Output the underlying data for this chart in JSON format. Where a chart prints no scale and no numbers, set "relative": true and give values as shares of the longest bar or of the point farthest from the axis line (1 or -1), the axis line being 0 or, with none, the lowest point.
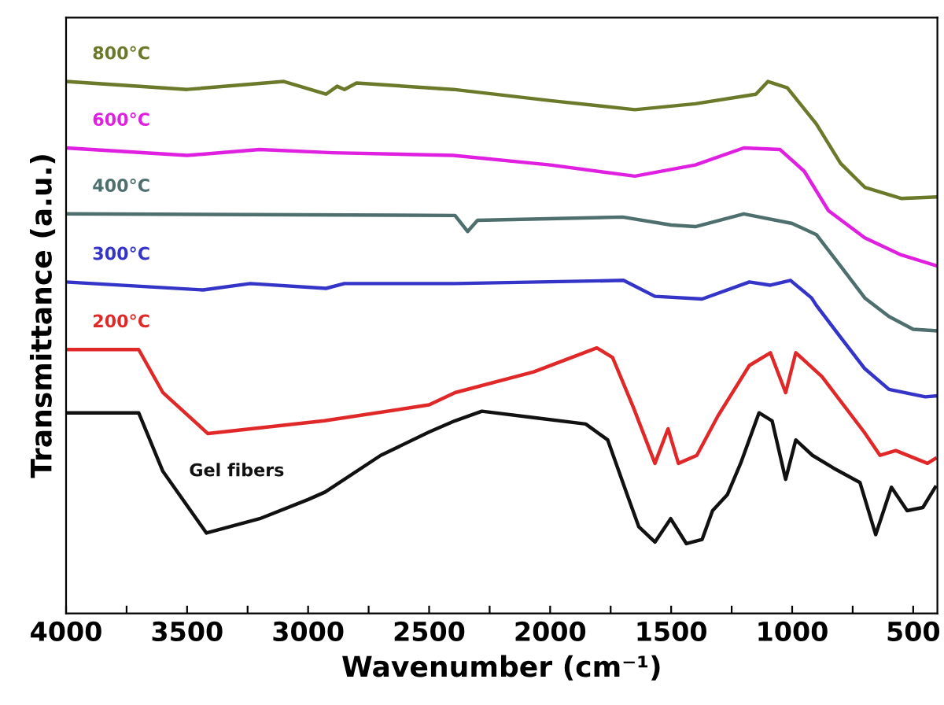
{
  "chart_data": {
    "type": "line",
    "xlabel": "Wavenumber (cm⁻¹)",
    "ylabel": "Transmittance (a.u.)",
    "relative": true,
    "xlim": [
      4000,
      400
    ],
    "xticks": [
      4000,
      {
        "value": 3750,
        "label": null
      },
      3500,
      {
        "value": 3250,
        "label": null
      },
      3000,
      {
        "value": 2750,
        "label": null
      },
      2500,
      {
        "value": 2250,
        "label": null
      },
      2000,
      {
        "value": 1750,
        "label": null
      },
      1500,
      {
        "value": 1250,
        "label": null
      },
      1000,
      {
        "value": 750,
        "label": null
      },
      500
    ],
    "grid": false,
    "legend": false,
    "marker": "none",
    "line_style": "solid",
    "tick_labels": "x",
    "series": [
      {
        "name": "Gel fibers",
        "color": "#111111",
        "x": [
          4000,
          3700,
          3600,
          3420,
          3200,
          3000,
          2930,
          2700,
          2500,
          2393,
          2282,
          2068,
          1853,
          1762,
          1677,
          1634,
          1567,
          1502,
          1437,
          1372,
          1329,
          1268,
          1213,
          1137,
          1083,
          1027,
          985,
          916,
          829,
          720,
          655,
          590,
          525,
          460,
          409
        ],
        "values": [
          0.377,
          0.377,
          0.267,
          0.151,
          0.178,
          0.214,
          0.228,
          0.297,
          0.341,
          0.362,
          0.38,
          0.368,
          0.356,
          0.326,
          0.217,
          0.163,
          0.134,
          0.178,
          0.131,
          0.139,
          0.193,
          0.223,
          0.282,
          0.377,
          0.362,
          0.252,
          0.326,
          0.297,
          0.273,
          0.246,
          0.148,
          0.237,
          0.193,
          0.199,
          0.237
        ]
      },
      {
        "name": "200°C",
        "color": "#e02828",
        "x": [
          4000,
          3700,
          3600,
          3414,
          2933,
          2500,
          2393,
          2068,
          1807,
          1742,
          1655,
          1567,
          1513,
          1470,
          1394,
          1307,
          1177,
          1090,
          1027,
          985,
          877,
          703,
          637,
          572,
          441,
          409
        ],
        "values": [
          0.496,
          0.496,
          0.415,
          0.338,
          0.362,
          0.392,
          0.415,
          0.454,
          0.499,
          0.481,
          0.386,
          0.282,
          0.347,
          0.282,
          0.297,
          0.371,
          0.466,
          0.49,
          0.415,
          0.49,
          0.445,
          0.341,
          0.297,
          0.306,
          0.282,
          0.291
        ]
      },
      {
        "name": "300°C",
        "color": "#3434c8",
        "x": [
          4000,
          3434,
          3239,
          2926,
          2850,
          2393,
          1697,
          1567,
          1372,
          1177,
          1090,
          1007,
          920,
          900,
          800,
          700,
          600,
          450,
          400
        ],
        "values": [
          0.623,
          0.608,
          0.62,
          0.611,
          0.62,
          0.62,
          0.626,
          0.596,
          0.591,
          0.623,
          0.617,
          0.626,
          0.593,
          0.579,
          0.519,
          0.46,
          0.421,
          0.407,
          0.409
        ]
      },
      {
        "name": "400°C",
        "color": "#4f6f6f",
        "x": [
          4000,
          2393,
          2341,
          2300,
          1700,
          1500,
          1400,
          1200,
          1000,
          900,
          800,
          700,
          600,
          500,
          400
        ],
        "values": [
          0.751,
          0.748,
          0.718,
          0.739,
          0.745,
          0.73,
          0.727,
          0.751,
          0.733,
          0.712,
          0.653,
          0.593,
          0.558,
          0.534,
          0.531
        ]
      },
      {
        "name": "600°C",
        "color": "#e020e0",
        "x": [
          4000,
          3500,
          3200,
          2900,
          2400,
          2000,
          1650,
          1400,
          1200,
          1050,
          950,
          850,
          700,
          550,
          400
        ],
        "values": [
          0.875,
          0.861,
          0.872,
          0.866,
          0.861,
          0.843,
          0.822,
          0.843,
          0.875,
          0.872,
          0.831,
          0.757,
          0.706,
          0.674,
          0.653
        ]
      },
      {
        "name": "800°C",
        "color": "#6b7a2a",
        "x": [
          4000,
          3500,
          3100,
          2926,
          2880,
          2850,
          2800,
          2400,
          2000,
          1650,
          1400,
          1150,
          1100,
          1020,
          900,
          800,
          700,
          550,
          400
        ],
        "values": [
          1.0,
          0.985,
          1.0,
          0.976,
          0.991,
          0.985,
          0.997,
          0.985,
          0.964,
          0.947,
          0.958,
          0.976,
          1.0,
          0.988,
          0.92,
          0.846,
          0.801,
          0.78,
          0.783
        ]
      }
    ]
  }
}
